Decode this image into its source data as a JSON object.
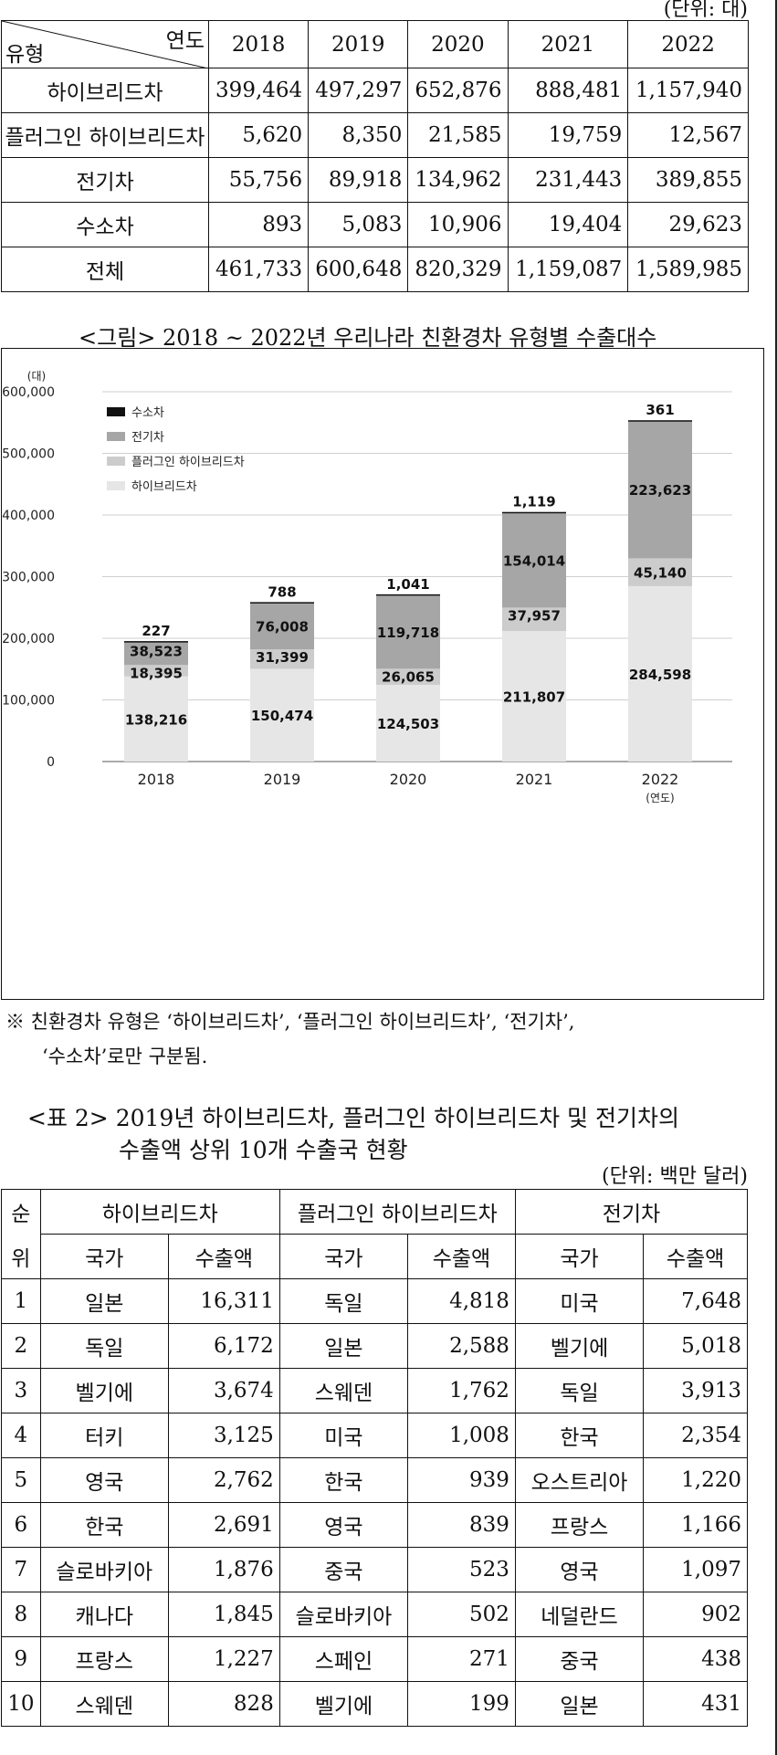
{
  "table1": {
    "unit": "(단위: 대)",
    "corner_year": "연도",
    "corner_type": "유형",
    "years": [
      "2018",
      "2019",
      "2020",
      "2021",
      "2022"
    ],
    "rows": [
      {
        "label": "하이브리드차",
        "values": [
          "399,464",
          "497,297",
          "652,876",
          "888,481",
          "1,157,940"
        ]
      },
      {
        "label": "플러그인 하이브리드차",
        "values": [
          "5,620",
          "8,350",
          "21,585",
          "19,759",
          "12,567"
        ]
      },
      {
        "label": "전기차",
        "values": [
          "55,756",
          "89,918",
          "134,962",
          "231,443",
          "389,855"
        ]
      },
      {
        "label": "수소차",
        "values": [
          "893",
          "5,083",
          "10,906",
          "19,404",
          "29,623"
        ]
      },
      {
        "label": "전체",
        "values": [
          "461,733",
          "600,648",
          "820,329",
          "1,159,087",
          "1,589,985"
        ]
      }
    ]
  },
  "figure": {
    "caption": "<그림> 2018 ~ 2022년 우리나라 친환경차 유형별 수출대수"
  },
  "chart_data": {
    "type": "bar",
    "stacked": true,
    "categories": [
      "2018",
      "2019",
      "2020",
      "2021",
      "2022"
    ],
    "xlabel": "(연도)",
    "ylabel": "(대)",
    "ylim": [
      0,
      600000
    ],
    "yticks": [
      0,
      100000,
      200000,
      300000,
      400000,
      500000,
      600000
    ],
    "ytick_labels": [
      "0",
      "100,000",
      "200,000",
      "300,000",
      "400,000",
      "500,000",
      "600,000"
    ],
    "grid": true,
    "legend_position": "top-left",
    "series": [
      {
        "name": "하이브리드차",
        "color": "#e6e6e6",
        "values": [
          138216,
          150474,
          124503,
          211807,
          284598
        ],
        "labels": [
          "138,216",
          "150,474",
          "124,503",
          "211,807",
          "284,598"
        ]
      },
      {
        "name": "플러그인 하이브리드차",
        "color": "#cccccc",
        "values": [
          18395,
          31399,
          26065,
          37957,
          45140
        ],
        "labels": [
          "18,395",
          "31,399",
          "26,065",
          "37,957",
          "45,140"
        ]
      },
      {
        "name": "전기차",
        "color": "#a6a6a6",
        "values": [
          38523,
          76008,
          119718,
          154014,
          223623
        ],
        "labels": [
          "38,523",
          "76,008",
          "119,718",
          "154,014",
          "223,623"
        ]
      },
      {
        "name": "수소차",
        "color": "#111111",
        "values": [
          227,
          788,
          1041,
          1119,
          361
        ],
        "labels": [
          "227",
          "788",
          "1,041",
          "1,119",
          "361"
        ]
      }
    ]
  },
  "note": {
    "line1": "※ 친환경차 유형은 ‘하이브리드차’, ‘플러그인 하이브리드차’, ‘전기차’,",
    "line2": "‘수소차’로만 구분됨."
  },
  "table2": {
    "title_line1": "<표 2> 2019년 하이브리드차, 플러그인 하이브리드차 및 전기차의",
    "title_line2": "수출액 상위 10개 수출국 현황",
    "unit": "(단위: 백만 달러)",
    "rank_header_1": "순",
    "rank_header_2": "위",
    "groups": [
      "하이브리드차",
      "플러그인 하이브리드차",
      "전기차"
    ],
    "sub_country": "국가",
    "sub_amount": "수출액",
    "rows": [
      [
        "1",
        "일본",
        "16,311",
        "독일",
        "4,818",
        "미국",
        "7,648"
      ],
      [
        "2",
        "독일",
        "6,172",
        "일본",
        "2,588",
        "벨기에",
        "5,018"
      ],
      [
        "3",
        "벨기에",
        "3,674",
        "스웨덴",
        "1,762",
        "독일",
        "3,913"
      ],
      [
        "4",
        "터키",
        "3,125",
        "미국",
        "1,008",
        "한국",
        "2,354"
      ],
      [
        "5",
        "영국",
        "2,762",
        "한국",
        "939",
        "오스트리아",
        "1,220"
      ],
      [
        "6",
        "한국",
        "2,691",
        "영국",
        "839",
        "프랑스",
        "1,166"
      ],
      [
        "7",
        "슬로바키아",
        "1,876",
        "중국",
        "523",
        "영국",
        "1,097"
      ],
      [
        "8",
        "캐나다",
        "1,845",
        "슬로바키아",
        "502",
        "네덜란드",
        "902"
      ],
      [
        "9",
        "프랑스",
        "1,227",
        "스페인",
        "271",
        "중국",
        "438"
      ],
      [
        "10",
        "스웨덴",
        "828",
        "벨기에",
        "199",
        "일본",
        "431"
      ]
    ]
  }
}
